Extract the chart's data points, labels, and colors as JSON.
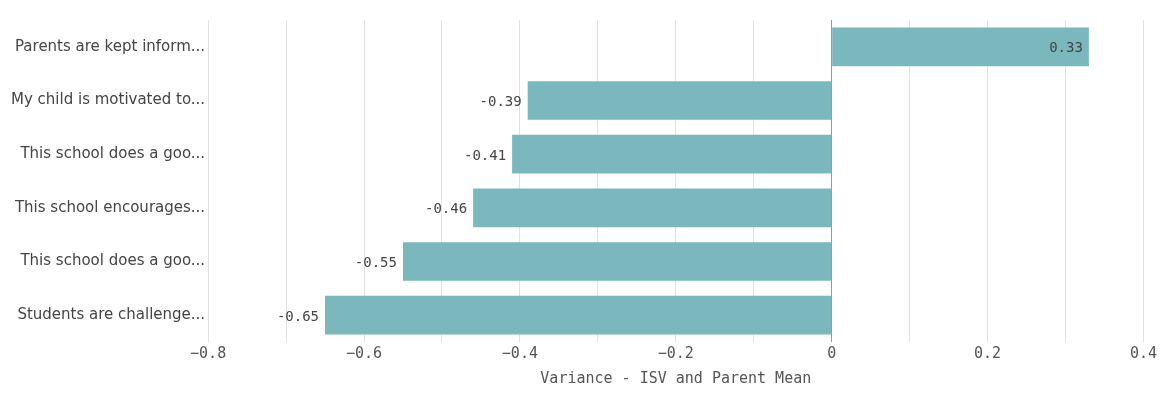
{
  "chart_data": {
    "type": "bar",
    "orientation": "horizontal",
    "xlabel": "Variance - ISV and Parent Mean",
    "categories": [
      "Parents are kept inform...",
      "My child is motivated to...",
      "This school does a goo...",
      "This school encourages...",
      "This school does a goo...",
      "Students are challenge..."
    ],
    "values": [
      0.33,
      -0.39,
      -0.41,
      -0.46,
      -0.55,
      -0.65
    ],
    "color": "#7ab8bd",
    "xlim": [
      -0.8,
      0.4
    ],
    "xticks": [
      -0.8,
      {
        "value": -0.7,
        "label": null
      },
      -0.6,
      {
        "value": -0.5,
        "label": null
      },
      -0.4,
      {
        "value": -0.3,
        "label": null
      },
      -0.2,
      {
        "value": -0.1,
        "label": null
      },
      0,
      {
        "value": 0.1,
        "label": null
      },
      0.2,
      {
        "value": 0.3,
        "label": null
      },
      0.4
    ],
    "grid": "x",
    "legend": false,
    "data_labels": true
  }
}
